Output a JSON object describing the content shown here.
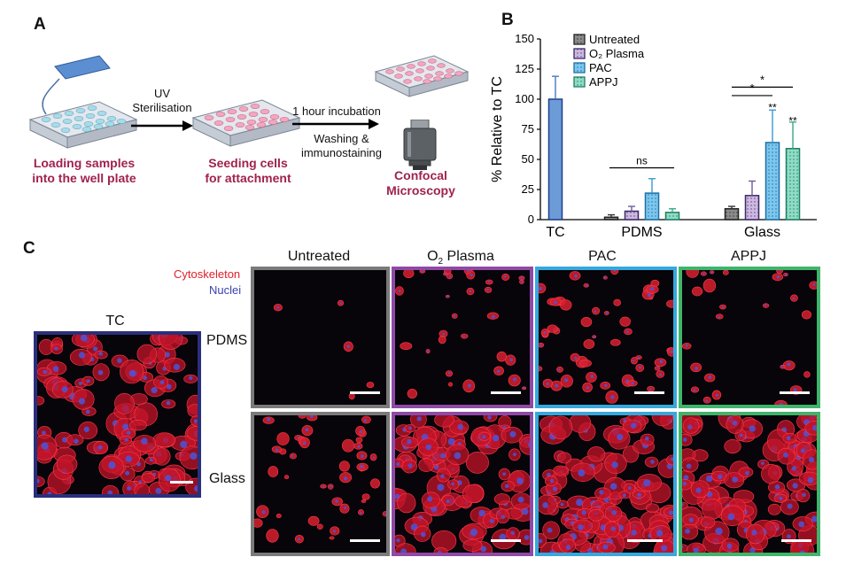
{
  "panelA": {
    "letter": "A",
    "step1_caption": [
      "Loading samples",
      "into the well plate"
    ],
    "arrow1_label": [
      "UV",
      "Sterilisation"
    ],
    "step2_caption": [
      "Seeding cells",
      "for attachment"
    ],
    "arrow2_label_top": "1 hour incubation",
    "arrow2_label_bottom": [
      "Washing &",
      "immunostaining"
    ],
    "step3_caption": [
      "Confocal",
      "Microscopy"
    ],
    "colors": {
      "caption": "#a0224f",
      "plate_wells_blue": "#a6dcea",
      "plate_wells_pink": "#f3a7bf",
      "sample_slide": "#5b8fd1"
    }
  },
  "panelB": {
    "letter": "B"
  },
  "chart_data": {
    "type": "bar",
    "ylabel": "% Relative to TC",
    "ylim": [
      0,
      150
    ],
    "yticks": [
      0,
      25,
      50,
      75,
      100,
      125,
      150
    ],
    "groups": [
      "TC",
      "PDMS",
      "Glass"
    ],
    "legend": [
      "Untreated",
      "O₂ Plasma",
      "PAC",
      "APPJ"
    ],
    "legend_placement": "top-center",
    "series_colors": {
      "TC": "#6c9bd8",
      "Untreated": "#8a8a8a",
      "O₂ Plasma": "#cdb9e0",
      "PAC": "#7cc7ee",
      "APPJ": "#8fdcc6"
    },
    "bars": [
      {
        "group": "TC",
        "series": "TC",
        "value": 100,
        "error": 19
      },
      {
        "group": "PDMS",
        "series": "Untreated",
        "value": 2,
        "error": 2
      },
      {
        "group": "PDMS",
        "series": "O₂ Plasma",
        "value": 7,
        "error": 4
      },
      {
        "group": "PDMS",
        "series": "PAC",
        "value": 22,
        "error": 12
      },
      {
        "group": "PDMS",
        "series": "APPJ",
        "value": 6,
        "error": 3
      },
      {
        "group": "Glass",
        "series": "Untreated",
        "value": 9,
        "error": 2
      },
      {
        "group": "Glass",
        "series": "O₂ Plasma",
        "value": 20,
        "error": 12
      },
      {
        "group": "Glass",
        "series": "PAC",
        "value": 64,
        "error": 27
      },
      {
        "group": "Glass",
        "series": "APPJ",
        "value": 59,
        "error": 22
      }
    ],
    "annotations": [
      {
        "text": "ns",
        "span": [
          "PDMS Untreated",
          "PDMS APPJ"
        ],
        "y": 43
      },
      {
        "text": "*",
        "span": [
          "Glass Untreated",
          "Glass PAC"
        ],
        "y": 103
      },
      {
        "text": "*",
        "span": [
          "Glass Untreated",
          "Glass APPJ"
        ],
        "y": 110
      },
      {
        "text": "**",
        "over": "Glass PAC",
        "y": 93
      },
      {
        "text": "**",
        "over": "Glass APPJ",
        "y": 82
      }
    ]
  },
  "panelC": {
    "letter": "C",
    "stain_labels": {
      "cytoskeleton": "Cytoskeleton",
      "nuclei": "Nuclei"
    },
    "stain_colors": {
      "cytoskeleton": "#e0202a",
      "nuclei": "#3b3fb0"
    },
    "tc_label": "TC",
    "columns": [
      "Untreated",
      "O",
      "2",
      " Plasma",
      "PAC",
      "APPJ"
    ],
    "column_heads": {
      "untreated": "Untreated",
      "o2_base": "O",
      "o2_sub": "2",
      "o2_rest": " Plasma",
      "pac": "PAC",
      "appj": "APPJ"
    },
    "rows": {
      "pdms": "PDMS",
      "glass": "Glass"
    },
    "frame_colors": {
      "tc": "#2a2f7c",
      "untreated": "#7a7a7a",
      "o2": "#8f4aa6",
      "pac": "#36a8dc",
      "appj": "#3fb56b"
    },
    "cell_density": {
      "tc": 0.95,
      "pdms_untreated": 0.01,
      "pdms_o2": 0.25,
      "pdms_pac": 0.45,
      "pdms_appj": 0.2,
      "glass_untreated": 0.35,
      "glass_o2": 0.75,
      "glass_pac": 0.9,
      "glass_appj": 0.85
    }
  }
}
